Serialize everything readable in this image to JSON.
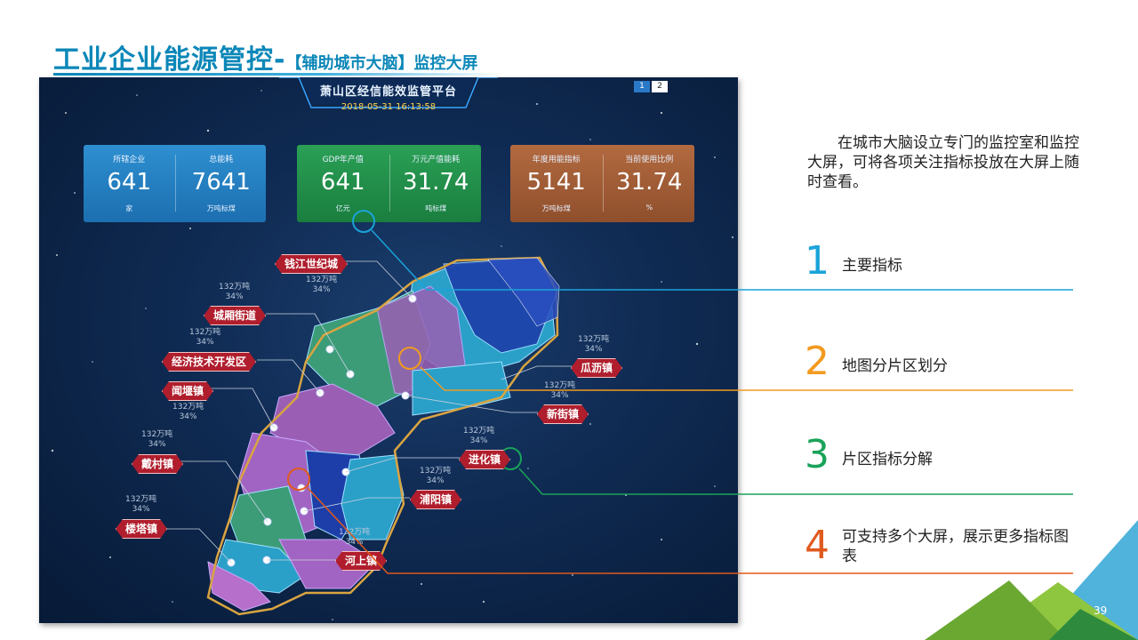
{
  "title": {
    "main": "工业企业能源管控-",
    "sub": "【辅助城市大脑】监控大屏"
  },
  "dashboard": {
    "header_title": "萧山区经信能效监管平台",
    "timestamp": "2018-05-31 16:13:58",
    "pages": [
      "1",
      "2"
    ],
    "cards": [
      {
        "color": "#2581c4",
        "left": {
          "label": "所辖企业",
          "value": "641",
          "unit": "家"
        },
        "right": {
          "label": "总能耗",
          "value": "7641",
          "unit": "万吨标煤"
        }
      },
      {
        "color": "#218f4a",
        "left": {
          "label": "GDP年产值",
          "value": "641",
          "unit": "亿元"
        },
        "right": {
          "label": "万元产值能耗",
          "value": "31.74",
          "unit": "吨标煤"
        }
      },
      {
        "color": "#a05d36",
        "left": {
          "label": "年度用能指标",
          "value": "5141",
          "unit": "万吨标煤"
        },
        "right": {
          "label": "当前使用比例",
          "value": "31.74",
          "unit": "%"
        }
      }
    ],
    "regions": [
      {
        "name": "钱江世纪城",
        "stat1": "132万吨",
        "stat2": "34%"
      },
      {
        "name": "城厢街道",
        "stat1": "132万吨",
        "stat2": "34%"
      },
      {
        "name": "经济技术开发区",
        "stat1": "132万吨",
        "stat2": "34%"
      },
      {
        "name": "闻堰镇",
        "stat1": "132万吨",
        "stat2": "34%"
      },
      {
        "name": "戴村镇",
        "stat1": "132万吨",
        "stat2": "34%"
      },
      {
        "name": "楼塔镇",
        "stat1": "132万吨",
        "stat2": "34%"
      },
      {
        "name": "瓜沥镇",
        "stat1": "132万吨",
        "stat2": "34%"
      },
      {
        "name": "新街镇",
        "stat1": "132万吨",
        "stat2": "34%"
      },
      {
        "name": "进化镇",
        "stat1": "132万吨",
        "stat2": "34%"
      },
      {
        "name": "浦阳镇",
        "stat1": "132万吨",
        "stat2": "34%"
      },
      {
        "name": "河上镇",
        "stat1": "132万吨",
        "stat2": "34%"
      }
    ]
  },
  "description": "在城市大脑设立专门的监控室和监控大屏，可将各项关注指标投放在大屏上随时查看。",
  "features": [
    {
      "number": "1",
      "text": "主要指标",
      "color": "#1aa3d9"
    },
    {
      "number": "2",
      "text": "地图分片区划分",
      "color": "#f29a1f"
    },
    {
      "number": "3",
      "text": "片区指标分解",
      "color": "#1aa35a"
    },
    {
      "number": "4",
      "text": "可支持多个大屏，展示更多指标图表",
      "color": "#e05a1e"
    }
  ],
  "page_number": "39"
}
